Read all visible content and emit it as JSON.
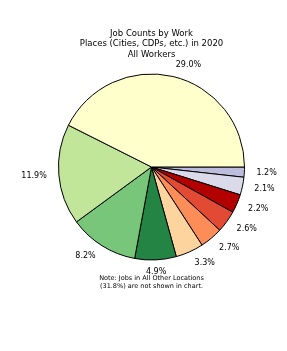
{
  "chart_data": {
    "type": "pie",
    "title": "Job Counts by Work\nPlaces (Cities, CDPs, etc.) in 2020\nAll Workers",
    "note": "Note: Jobs in All Other Locations\n(31.8%) are not shown in chart.",
    "values": [
      29.0,
      11.9,
      8.2,
      4.9,
      3.3,
      2.7,
      2.6,
      2.2,
      2.1,
      1.2
    ],
    "value_labels": [
      "29.0%",
      "11.9%",
      "8.2%",
      "4.9%",
      "3.3%",
      "2.7%",
      "2.6%",
      "2.2%",
      "2.1%",
      "1.2%"
    ],
    "colors": [
      "#ffffcc",
      "#c2e699",
      "#78c679",
      "#238443",
      "#fdd49e",
      "#fc8d59",
      "#e34a33",
      "#b30000",
      "#dadaeb",
      "#bcbddc"
    ],
    "data_labels": true
  }
}
